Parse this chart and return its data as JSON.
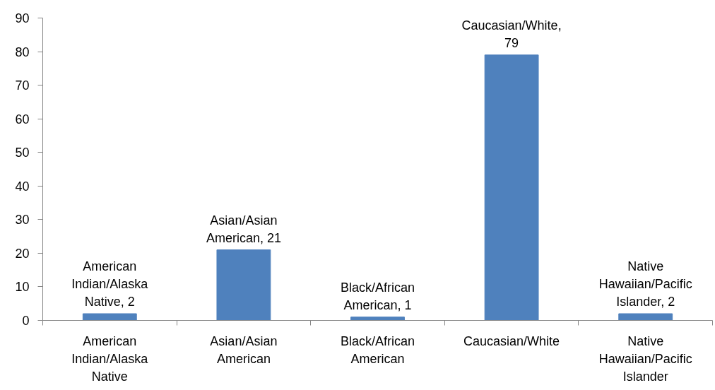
{
  "chart_data": {
    "type": "bar",
    "categories": [
      "American Indian/Alaska Native",
      "Asian/Asian American",
      "Black/African American",
      "Caucasian/White",
      "Native Hawaiian/Pacific Islander"
    ],
    "values": [
      2,
      21,
      1,
      79,
      2
    ],
    "value_labels": [
      "American Indian/Alaska Native, 2",
      "Asian/Asian American, 21",
      "Black/African American, 1",
      "Caucasian/White, 79",
      "Native Hawaiian/Pacific Islander, 2"
    ],
    "color": "#4f81bd",
    "ylim": [
      0,
      90
    ],
    "yticks": [
      0,
      10,
      20,
      30,
      40,
      50,
      60,
      70,
      80,
      90
    ]
  }
}
